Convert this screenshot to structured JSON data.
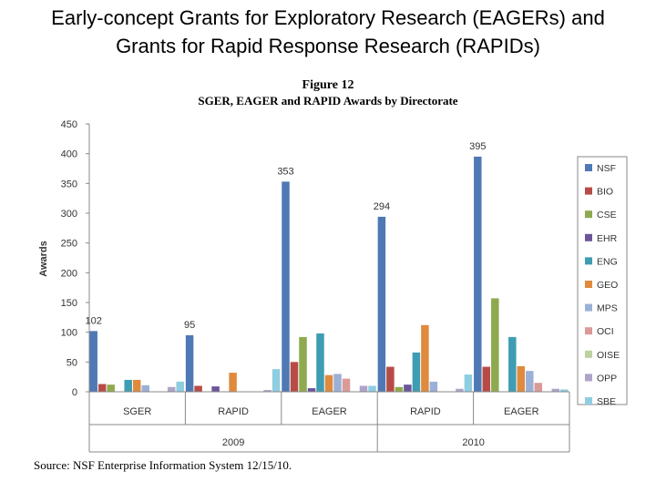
{
  "slide_title_line1": "Early-concept Grants for Exploratory Research (EAGERs) and",
  "slide_title_line2": "Grants for Rapid Response Research (RAPIDs)",
  "source_note": "Source: NSF Enterprise Information System 12/15/10.",
  "chart_data": {
    "type": "bar",
    "figure_label": "Figure 12",
    "title": "SGER, EAGER and RAPID Awards by Directorate",
    "xlabel": "",
    "ylabel": "Awards",
    "ylim": [
      0,
      450
    ],
    "yticks": [
      0,
      50,
      100,
      150,
      200,
      250,
      300,
      350,
      400,
      450
    ],
    "grid": false,
    "legend_position": "right",
    "categories": [
      "SGER",
      "RAPID",
      "EAGER",
      "RAPID",
      "EAGER"
    ],
    "category_groups": [
      {
        "label": "2009",
        "span": [
          0,
          2
        ]
      },
      {
        "label": "2010",
        "span": [
          3,
          4
        ]
      }
    ],
    "data_labels": [
      "102",
      "95",
      "353",
      "294",
      "395"
    ],
    "series": [
      {
        "name": "NSF",
        "color": "#4F79B4",
        "values": [
          102,
          95,
          353,
          294,
          395
        ]
      },
      {
        "name": "BIO",
        "color": "#B84B47",
        "values": [
          13,
          10,
          50,
          42,
          42
        ]
      },
      {
        "name": "CSE",
        "color": "#8EAA4F",
        "values": [
          12,
          0,
          92,
          8,
          157
        ]
      },
      {
        "name": "EHR",
        "color": "#6B559A",
        "values": [
          0,
          9,
          6,
          12,
          0
        ]
      },
      {
        "name": "ENG",
        "color": "#3E9DB3",
        "values": [
          20,
          0,
          98,
          66,
          92
        ]
      },
      {
        "name": "GEO",
        "color": "#E08A3D",
        "values": [
          20,
          32,
          28,
          112,
          43
        ]
      },
      {
        "name": "MPS",
        "color": "#9BB0D8",
        "values": [
          11,
          0,
          30,
          17,
          35
        ]
      },
      {
        "name": "OCI",
        "color": "#DB9A98",
        "values": [
          0,
          0,
          22,
          0,
          15
        ]
      },
      {
        "name": "OISE",
        "color": "#BDD29F",
        "values": [
          0,
          0,
          0,
          0,
          0
        ]
      },
      {
        "name": "OPP",
        "color": "#AEA4C8",
        "values": [
          8,
          3,
          10,
          5,
          5
        ]
      },
      {
        "name": "SBE",
        "color": "#8FCDE1",
        "values": [
          17,
          38,
          10,
          29,
          4
        ]
      }
    ]
  }
}
